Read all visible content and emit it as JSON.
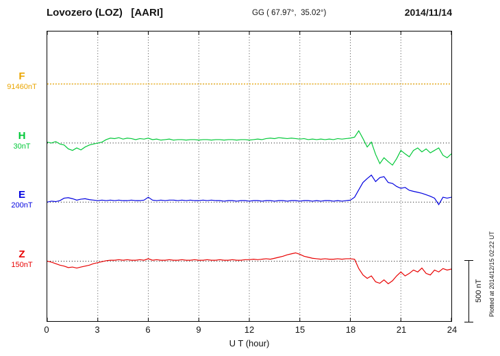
{
  "header": {
    "station": "Lovozero (LOZ)   [AARI]",
    "coords": "GG ( 67.97°,  35.02°)",
    "date": "2014/11/14"
  },
  "footer_note": "Plotted at 2014/12/15 02:22 UT",
  "colors": {
    "grid": "#444444",
    "baseline": "#000000",
    "text": "#111111"
  },
  "chart_data": {
    "type": "line",
    "title": "Lovozero (LOZ) [AARI] magnetogram 2014/11/14",
    "xlabel": "U T (hour)",
    "x_range": [
      0,
      24
    ],
    "x_ticks": [
      0,
      3,
      6,
      9,
      12,
      15,
      18,
      21,
      24
    ],
    "sample_step_hours": 0.25,
    "values_unit": "nT relative to each component baseline",
    "scale_bar": {
      "label": "500 nT",
      "nT": 500
    },
    "series": [
      {
        "name": "F",
        "baseline_label": "91460nT",
        "color": "#eaa500",
        "style": "dotted",
        "values": [
          0,
          0
        ]
      },
      {
        "name": "H",
        "baseline_label": "30nT",
        "color": "#00c837",
        "style": "solid",
        "values": [
          8,
          0,
          12,
          -8,
          -16,
          -48,
          -60,
          -40,
          -56,
          -32,
          -16,
          -8,
          0,
          8,
          28,
          40,
          36,
          44,
          32,
          40,
          36,
          28,
          36,
          32,
          40,
          28,
          32,
          24,
          28,
          32,
          24,
          28,
          28,
          24,
          28,
          28,
          24,
          28,
          28,
          24,
          28,
          28,
          24,
          28,
          28,
          24,
          28,
          28,
          24,
          28,
          32,
          28,
          36,
          40,
          36,
          44,
          40,
          36,
          40,
          36,
          32,
          36,
          28,
          32,
          28,
          32,
          28,
          32,
          28,
          36,
          32,
          36,
          40,
          48,
          100,
          36,
          -32,
          8,
          -92,
          -168,
          -120,
          -152,
          -180,
          -128,
          -60,
          -88,
          -112,
          -60,
          -40,
          -72,
          -48,
          -80,
          -60,
          -40,
          -100,
          -120,
          -88
        ]
      },
      {
        "name": "E",
        "baseline_label": "200nT",
        "color": "#0000e0",
        "style": "solid",
        "values": [
          0,
          8,
          4,
          12,
          32,
          36,
          28,
          16,
          24,
          28,
          20,
          16,
          12,
          16,
          12,
          16,
          12,
          16,
          12,
          12,
          16,
          12,
          12,
          16,
          40,
          16,
          12,
          16,
          12,
          16,
          16,
          12,
          16,
          12,
          16,
          12,
          12,
          16,
          12,
          16,
          12,
          12,
          8,
          12,
          12,
          8,
          12,
          12,
          8,
          12,
          12,
          8,
          12,
          12,
          8,
          12,
          12,
          8,
          12,
          12,
          8,
          12,
          12,
          8,
          12,
          8,
          12,
          12,
          8,
          12,
          8,
          12,
          16,
          40,
          100,
          160,
          192,
          220,
          168,
          200,
          208,
          160,
          152,
          128,
          112,
          120,
          96,
          88,
          80,
          72,
          60,
          48,
          32,
          -20,
          40,
          32,
          40
        ]
      },
      {
        "name": "Z",
        "baseline_label": "150nT",
        "color": "#e80000",
        "style": "solid",
        "values": [
          0,
          -8,
          -20,
          -32,
          -40,
          -52,
          -48,
          -56,
          -48,
          -40,
          -32,
          -20,
          -12,
          -4,
          4,
          8,
          8,
          12,
          8,
          12,
          8,
          8,
          12,
          8,
          20,
          8,
          12,
          8,
          8,
          12,
          8,
          8,
          12,
          8,
          8,
          12,
          8,
          8,
          12,
          8,
          8,
          12,
          8,
          8,
          12,
          8,
          8,
          12,
          12,
          16,
          12,
          16,
          20,
          16,
          24,
          32,
          40,
          52,
          60,
          68,
          56,
          40,
          32,
          24,
          20,
          16,
          20,
          16,
          16,
          20,
          16,
          20,
          20,
          16,
          -60,
          -112,
          -140,
          -120,
          -168,
          -180,
          -152,
          -184,
          -160,
          -120,
          -88,
          -120,
          -100,
          -72,
          -88,
          -56,
          -100,
          -112,
          -72,
          -88,
          -60,
          -72,
          -64
        ]
      }
    ]
  }
}
